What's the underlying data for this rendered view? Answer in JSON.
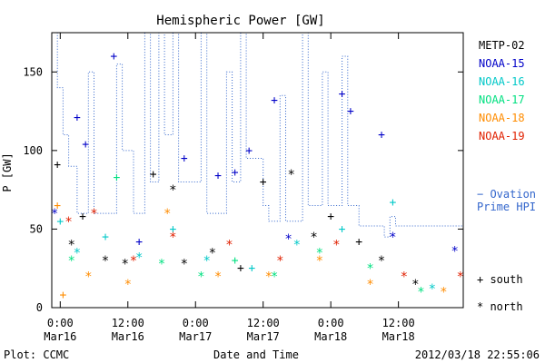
{
  "chart_data": {
    "type": "scatter",
    "title": "Hemispheric Power [GW]",
    "xlabel": "Date and Time",
    "ylabel": "P [GW]",
    "xlim": [
      "2012-03-15T22:30",
      "2012-03-18T23:30"
    ],
    "ylim": [
      0,
      175
    ],
    "yticks": [
      0,
      50,
      100,
      150
    ],
    "xticks": [
      {
        "value": "2012-03-16T00:00",
        "time": "0:00",
        "date": "Mar16"
      },
      {
        "value": "2012-03-16T12:00",
        "time": "12:00",
        "date": "Mar16"
      },
      {
        "value": "2012-03-17T00:00",
        "time": "0:00",
        "date": "Mar17"
      },
      {
        "value": "2012-03-17T12:00",
        "time": "12:00",
        "date": "Mar17"
      },
      {
        "value": "2012-03-18T00:00",
        "time": "0:00",
        "date": "Mar18"
      },
      {
        "value": "2012-03-18T12:00",
        "time": "12:00",
        "date": "Mar18"
      }
    ],
    "grid": false,
    "legend_position": "right",
    "series": [
      {
        "name": "METP-02",
        "color": "#000000",
        "points": [
          {
            "x": "2012-03-15T23:30",
            "y": 91,
            "m": "+"
          },
          {
            "x": "2012-03-16T02:00",
            "y": 40,
            "m": "*"
          },
          {
            "x": "2012-03-16T04:00",
            "y": 58,
            "m": "+"
          },
          {
            "x": "2012-03-16T08:00",
            "y": 30,
            "m": "*"
          },
          {
            "x": "2012-03-16T11:30",
            "y": 28,
            "m": "*"
          },
          {
            "x": "2012-03-16T16:30",
            "y": 85,
            "m": "+"
          },
          {
            "x": "2012-03-16T20:00",
            "y": 75,
            "m": "*"
          },
          {
            "x": "2012-03-16T22:00",
            "y": 28,
            "m": "*"
          },
          {
            "x": "2012-03-17T03:00",
            "y": 35,
            "m": "*"
          },
          {
            "x": "2012-03-17T08:00",
            "y": 25,
            "m": "+"
          },
          {
            "x": "2012-03-17T12:00",
            "y": 80,
            "m": "+"
          },
          {
            "x": "2012-03-17T17:00",
            "y": 85,
            "m": "*"
          },
          {
            "x": "2012-03-17T21:00",
            "y": 45,
            "m": "*"
          },
          {
            "x": "2012-03-18T00:00",
            "y": 58,
            "m": "+"
          },
          {
            "x": "2012-03-18T05:00",
            "y": 42,
            "m": "+"
          },
          {
            "x": "2012-03-18T09:00",
            "y": 30,
            "m": "*"
          },
          {
            "x": "2012-03-18T15:00",
            "y": 15,
            "m": "*"
          }
        ]
      },
      {
        "name": "NOAA-15",
        "color": "#0000c8",
        "points": [
          {
            "x": "2012-03-15T23:00",
            "y": 60,
            "m": "*"
          },
          {
            "x": "2012-03-16T03:00",
            "y": 121,
            "m": "+"
          },
          {
            "x": "2012-03-16T04:30",
            "y": 104,
            "m": "+"
          },
          {
            "x": "2012-03-16T09:30",
            "y": 160,
            "m": "+"
          },
          {
            "x": "2012-03-16T14:00",
            "y": 42,
            "m": "+"
          },
          {
            "x": "2012-03-16T22:00",
            "y": 95,
            "m": "+"
          },
          {
            "x": "2012-03-17T04:00",
            "y": 84,
            "m": "+"
          },
          {
            "x": "2012-03-17T07:00",
            "y": 86,
            "m": "+"
          },
          {
            "x": "2012-03-17T09:30",
            "y": 100,
            "m": "+"
          },
          {
            "x": "2012-03-17T14:00",
            "y": 132,
            "m": "+"
          },
          {
            "x": "2012-03-17T16:30",
            "y": 44,
            "m": "*"
          },
          {
            "x": "2012-03-18T02:00",
            "y": 136,
            "m": "+"
          },
          {
            "x": "2012-03-18T03:30",
            "y": 125,
            "m": "+"
          },
          {
            "x": "2012-03-18T09:00",
            "y": 110,
            "m": "+"
          },
          {
            "x": "2012-03-18T11:00",
            "y": 45,
            "m": "*"
          },
          {
            "x": "2012-03-18T22:00",
            "y": 36,
            "m": "*"
          }
        ]
      },
      {
        "name": "NOAA-16",
        "color": "#00c8c8",
        "points": [
          {
            "x": "2012-03-16T00:00",
            "y": 55,
            "m": "+"
          },
          {
            "x": "2012-03-16T03:00",
            "y": 35,
            "m": "*"
          },
          {
            "x": "2012-03-16T08:00",
            "y": 45,
            "m": "+"
          },
          {
            "x": "2012-03-16T14:00",
            "y": 32,
            "m": "*"
          },
          {
            "x": "2012-03-16T20:00",
            "y": 50,
            "m": "+"
          },
          {
            "x": "2012-03-17T02:00",
            "y": 30,
            "m": "*"
          },
          {
            "x": "2012-03-17T10:00",
            "y": 25,
            "m": "+"
          },
          {
            "x": "2012-03-17T18:00",
            "y": 40,
            "m": "*"
          },
          {
            "x": "2012-03-18T02:00",
            "y": 50,
            "m": "+"
          },
          {
            "x": "2012-03-18T11:00",
            "y": 67,
            "m": "+"
          },
          {
            "x": "2012-03-18T18:00",
            "y": 12,
            "m": "*"
          }
        ]
      },
      {
        "name": "NOAA-17",
        "color": "#00e080",
        "points": [
          {
            "x": "2012-03-16T02:00",
            "y": 30,
            "m": "*"
          },
          {
            "x": "2012-03-16T10:00",
            "y": 83,
            "m": "+"
          },
          {
            "x": "2012-03-16T18:00",
            "y": 28,
            "m": "*"
          },
          {
            "x": "2012-03-17T01:00",
            "y": 20,
            "m": "*"
          },
          {
            "x": "2012-03-17T07:00",
            "y": 30,
            "m": "+"
          },
          {
            "x": "2012-03-17T14:00",
            "y": 20,
            "m": "*"
          },
          {
            "x": "2012-03-17T22:00",
            "y": 35,
            "m": "*"
          },
          {
            "x": "2012-03-18T07:00",
            "y": 25,
            "m": "*"
          },
          {
            "x": "2012-03-18T16:00",
            "y": 10,
            "m": "*"
          }
        ]
      },
      {
        "name": "NOAA-18",
        "color": "#ff8c00",
        "points": [
          {
            "x": "2012-03-15T23:30",
            "y": 65,
            "m": "+"
          },
          {
            "x": "2012-03-16T00:30",
            "y": 8,
            "m": "+"
          },
          {
            "x": "2012-03-16T05:00",
            "y": 20,
            "m": "*"
          },
          {
            "x": "2012-03-16T12:00",
            "y": 15,
            "m": "*"
          },
          {
            "x": "2012-03-16T19:00",
            "y": 60,
            "m": "*"
          },
          {
            "x": "2012-03-17T04:00",
            "y": 20,
            "m": "*"
          },
          {
            "x": "2012-03-17T13:00",
            "y": 20,
            "m": "*"
          },
          {
            "x": "2012-03-17T22:00",
            "y": 30,
            "m": "*"
          },
          {
            "x": "2012-03-18T07:00",
            "y": 15,
            "m": "*"
          },
          {
            "x": "2012-03-18T20:00",
            "y": 10,
            "m": "*"
          }
        ]
      },
      {
        "name": "NOAA-19",
        "color": "#e02000",
        "points": [
          {
            "x": "2012-03-16T01:30",
            "y": 55,
            "m": "*"
          },
          {
            "x": "2012-03-16T06:00",
            "y": 60,
            "m": "*"
          },
          {
            "x": "2012-03-16T13:00",
            "y": 30,
            "m": "*"
          },
          {
            "x": "2012-03-16T20:00",
            "y": 45,
            "m": "*"
          },
          {
            "x": "2012-03-17T06:00",
            "y": 40,
            "m": "*"
          },
          {
            "x": "2012-03-17T15:00",
            "y": 30,
            "m": "*"
          },
          {
            "x": "2012-03-18T01:00",
            "y": 40,
            "m": "*"
          },
          {
            "x": "2012-03-18T13:00",
            "y": 20,
            "m": "*"
          },
          {
            "x": "2012-03-18T23:00",
            "y": 20,
            "m": "*"
          }
        ]
      }
    ],
    "ovation": {
      "name": "Ovation Prime HPI",
      "label_line1": "− Ovation",
      "label_line2": "Prime HPI",
      "color": "#3366cc",
      "style": "dotted-step",
      "points": [
        {
          "x": "2012-03-15T22:30",
          "y": 175
        },
        {
          "x": "2012-03-15T23:30",
          "y": 175
        },
        {
          "x": "2012-03-15T23:30",
          "y": 140
        },
        {
          "x": "2012-03-16T00:30",
          "y": 140
        },
        {
          "x": "2012-03-16T00:30",
          "y": 110
        },
        {
          "x": "2012-03-16T01:30",
          "y": 110
        },
        {
          "x": "2012-03-16T01:30",
          "y": 90
        },
        {
          "x": "2012-03-16T03:00",
          "y": 90
        },
        {
          "x": "2012-03-16T03:00",
          "y": 60
        },
        {
          "x": "2012-03-16T05:00",
          "y": 60
        },
        {
          "x": "2012-03-16T05:00",
          "y": 150
        },
        {
          "x": "2012-03-16T06:00",
          "y": 150
        },
        {
          "x": "2012-03-16T06:00",
          "y": 60
        },
        {
          "x": "2012-03-16T10:00",
          "y": 60
        },
        {
          "x": "2012-03-16T10:00",
          "y": 155
        },
        {
          "x": "2012-03-16T11:00",
          "y": 155
        },
        {
          "x": "2012-03-16T11:00",
          "y": 100
        },
        {
          "x": "2012-03-16T13:00",
          "y": 100
        },
        {
          "x": "2012-03-16T13:00",
          "y": 60
        },
        {
          "x": "2012-03-16T15:00",
          "y": 60
        },
        {
          "x": "2012-03-16T15:00",
          "y": 175
        },
        {
          "x": "2012-03-16T16:00",
          "y": 175
        },
        {
          "x": "2012-03-16T16:00",
          "y": 80
        },
        {
          "x": "2012-03-16T17:30",
          "y": 80
        },
        {
          "x": "2012-03-16T17:30",
          "y": 175
        },
        {
          "x": "2012-03-16T18:30",
          "y": 175
        },
        {
          "x": "2012-03-16T18:30",
          "y": 110
        },
        {
          "x": "2012-03-16T20:00",
          "y": 110
        },
        {
          "x": "2012-03-16T20:00",
          "y": 175
        },
        {
          "x": "2012-03-16T21:00",
          "y": 175
        },
        {
          "x": "2012-03-16T21:00",
          "y": 80
        },
        {
          "x": "2012-03-17T01:00",
          "y": 80
        },
        {
          "x": "2012-03-17T01:00",
          "y": 175
        },
        {
          "x": "2012-03-17T02:00",
          "y": 175
        },
        {
          "x": "2012-03-17T02:00",
          "y": 60
        },
        {
          "x": "2012-03-17T05:30",
          "y": 60
        },
        {
          "x": "2012-03-17T05:30",
          "y": 150
        },
        {
          "x": "2012-03-17T06:30",
          "y": 150
        },
        {
          "x": "2012-03-17T06:30",
          "y": 80
        },
        {
          "x": "2012-03-17T08:00",
          "y": 80
        },
        {
          "x": "2012-03-17T08:00",
          "y": 175
        },
        {
          "x": "2012-03-17T09:00",
          "y": 175
        },
        {
          "x": "2012-03-17T09:00",
          "y": 95
        },
        {
          "x": "2012-03-17T12:00",
          "y": 95
        },
        {
          "x": "2012-03-17T12:00",
          "y": 65
        },
        {
          "x": "2012-03-17T13:00",
          "y": 65
        },
        {
          "x": "2012-03-17T13:00",
          "y": 55
        },
        {
          "x": "2012-03-17T15:00",
          "y": 55
        },
        {
          "x": "2012-03-17T15:00",
          "y": 135
        },
        {
          "x": "2012-03-17T16:00",
          "y": 135
        },
        {
          "x": "2012-03-17T16:00",
          "y": 55
        },
        {
          "x": "2012-03-17T19:00",
          "y": 55
        },
        {
          "x": "2012-03-17T19:00",
          "y": 175
        },
        {
          "x": "2012-03-17T20:00",
          "y": 175
        },
        {
          "x": "2012-03-17T20:00",
          "y": 65
        },
        {
          "x": "2012-03-17T22:30",
          "y": 65
        },
        {
          "x": "2012-03-17T22:30",
          "y": 150
        },
        {
          "x": "2012-03-17T23:30",
          "y": 150
        },
        {
          "x": "2012-03-17T23:30",
          "y": 65
        },
        {
          "x": "2012-03-18T02:00",
          "y": 65
        },
        {
          "x": "2012-03-18T02:00",
          "y": 160
        },
        {
          "x": "2012-03-18T03:00",
          "y": 160
        },
        {
          "x": "2012-03-18T03:00",
          "y": 65
        },
        {
          "x": "2012-03-18T05:00",
          "y": 65
        },
        {
          "x": "2012-03-18T05:00",
          "y": 52
        },
        {
          "x": "2012-03-18T09:30",
          "y": 52
        },
        {
          "x": "2012-03-18T09:30",
          "y": 45
        },
        {
          "x": "2012-03-18T10:30",
          "y": 45
        },
        {
          "x": "2012-03-18T10:30",
          "y": 58
        },
        {
          "x": "2012-03-18T11:30",
          "y": 58
        },
        {
          "x": "2012-03-18T11:30",
          "y": 52
        },
        {
          "x": "2012-03-18T23:30",
          "y": 52
        }
      ]
    },
    "marker_legend": [
      {
        "symbol": "+",
        "label": "south"
      },
      {
        "symbol": "*",
        "label": "north"
      }
    ]
  },
  "footer": {
    "left": "Plot: CCMC",
    "right": "2012/03/18 22:55:06"
  }
}
